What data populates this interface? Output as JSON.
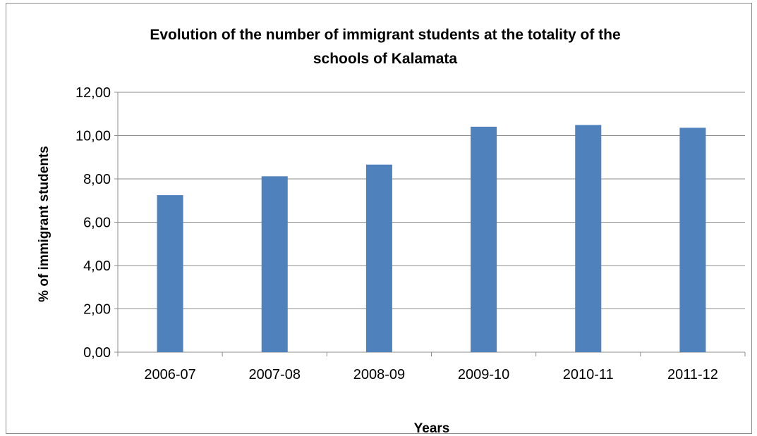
{
  "chart_data": {
    "type": "bar",
    "title": "Evolution of the number of immigrant students at the totality of the schools of Kalamata",
    "title_lines": [
      "Evolution of the number of immigrant students at the totality of the",
      "schools of Kalamata"
    ],
    "xlabel": "Years",
    "ylabel": "% of immigrant students",
    "categories": [
      "2006-07",
      "2007-08",
      "2008-09",
      "2009-10",
      "2010-11",
      "2011-12"
    ],
    "values": [
      7.25,
      8.12,
      8.66,
      10.41,
      10.49,
      10.36
    ],
    "ylim": [
      0,
      12
    ],
    "yticks": [
      0,
      2,
      4,
      6,
      8,
      10,
      12
    ],
    "ytick_labels": [
      "0,00",
      "2,00",
      "4,00",
      "6,00",
      "8,00",
      "10,00",
      "12,00"
    ],
    "grid": true,
    "legend": "none",
    "bar_color": "#4f81bd",
    "grid_color": "#8c8c8c"
  }
}
